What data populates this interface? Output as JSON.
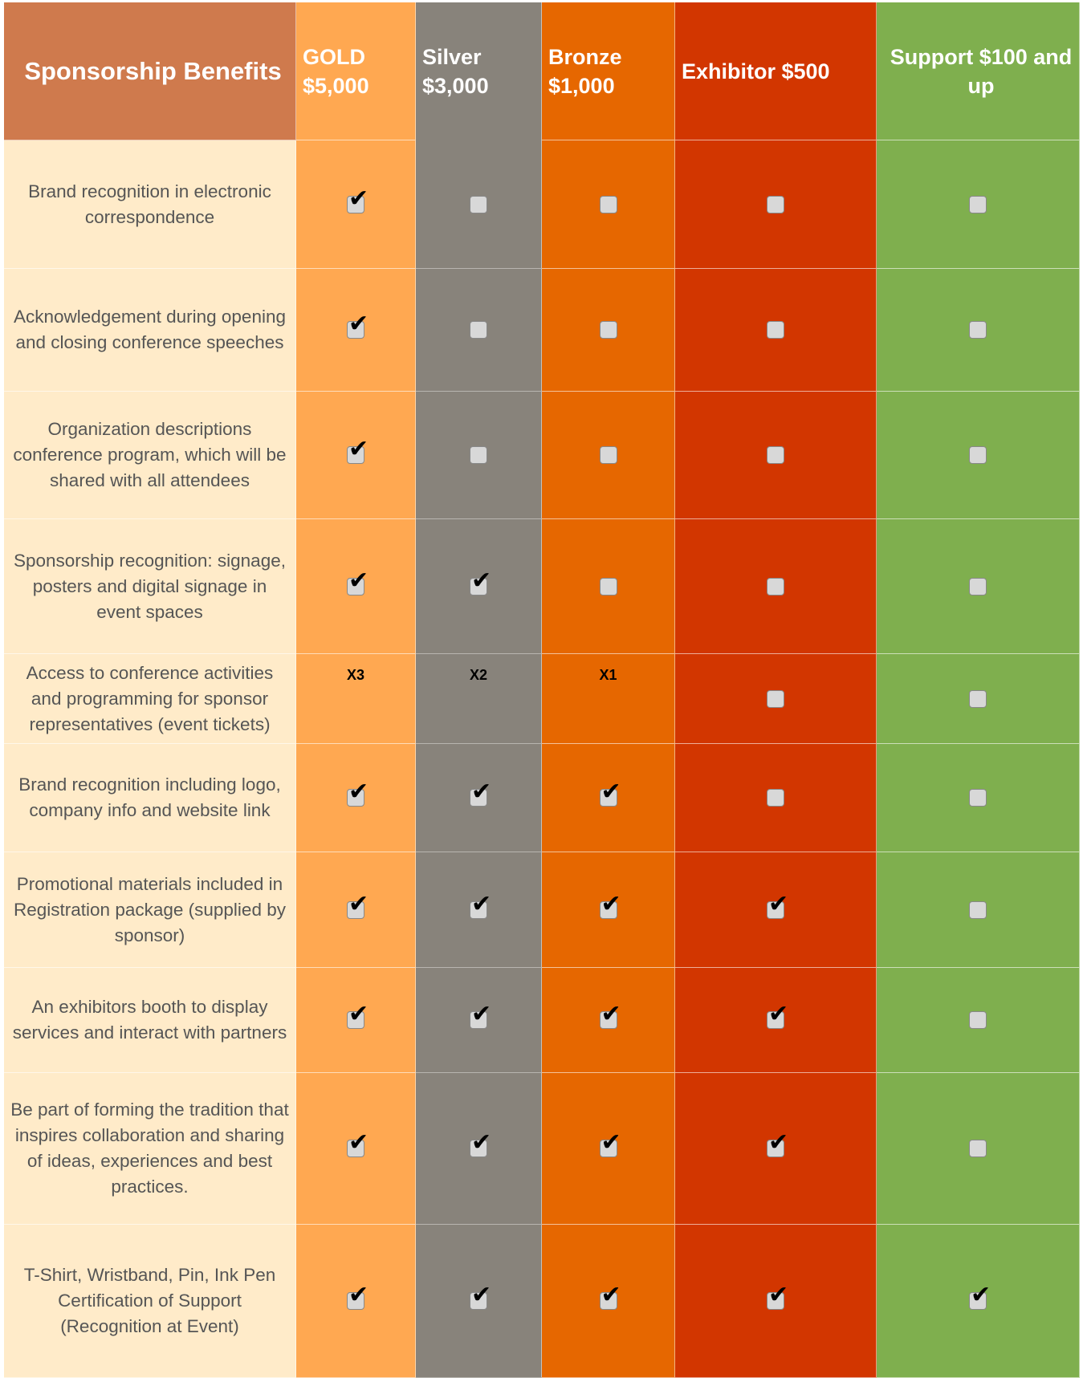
{
  "colors": {
    "header": "#CF7A4D",
    "benefit_bg": "#FFEBC9",
    "gold": "#FFA851",
    "silver": "#88837B",
    "bronze": "#E66700",
    "exhibitor": "#D23600",
    "support": "#7FAF4E"
  },
  "header": {
    "title": "Sponsorship Benefits",
    "tiers": [
      "GOLD $5,000",
      "Silver $3,000",
      "Bronze $1,000",
      "Exhibitor $500",
      "Support $100 and up"
    ]
  },
  "rows": [
    {
      "benefit": "Brand recognition in electronic correspondence",
      "cells": [
        true,
        false,
        false,
        false,
        false
      ]
    },
    {
      "benefit": "Acknowledgement during opening and closing conference speeches",
      "cells": [
        true,
        false,
        false,
        false,
        false
      ]
    },
    {
      "benefit": "Organization descriptions conference program, which will be shared with all attendees",
      "cells": [
        true,
        false,
        false,
        false,
        false
      ]
    },
    {
      "benefit": "Sponsorship recognition: signage, posters and digital signage in event spaces",
      "cells": [
        true,
        true,
        false,
        false,
        false
      ]
    },
    {
      "benefit": "Access to conference activities and programming for sponsor representatives (event tickets)",
      "cells": [
        "X3",
        "X2",
        "X1",
        false,
        false
      ]
    },
    {
      "benefit": "Brand recognition including logo, company info and website link",
      "cells": [
        true,
        true,
        true,
        false,
        false
      ]
    },
    {
      "benefit": "Promotional materials included in Registration package (supplied by sponsor)",
      "cells": [
        true,
        true,
        true,
        true,
        false
      ]
    },
    {
      "benefit": "An exhibitors booth to display services and interact with partners",
      "cells": [
        true,
        true,
        true,
        true,
        false
      ]
    },
    {
      "benefit": "Be part of forming the tradition that inspires collaboration and sharing of ideas, experiences and best practices.",
      "cells": [
        true,
        true,
        true,
        true,
        false
      ]
    },
    {
      "benefit": "T-Shirt, Wristband, Pin, Ink Pen Certification of Support (Recognition at Event)",
      "cells": [
        true,
        true,
        true,
        true,
        true
      ]
    }
  ]
}
